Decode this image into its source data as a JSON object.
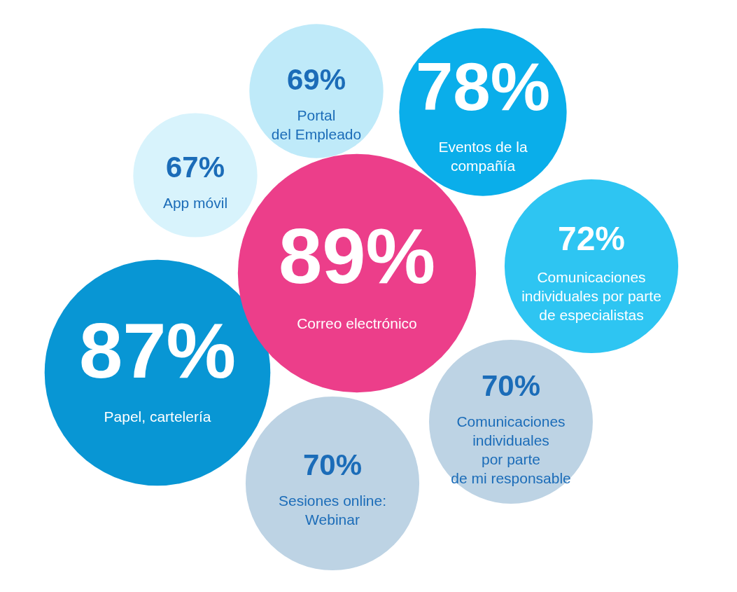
{
  "chart_data": {
    "type": "other",
    "categories": [
      "Portal del Empleado",
      "App móvil",
      "Eventos de la compañía",
      "Comunicaciones individuales por parte de especialistas",
      "Papel, cartelería",
      "Sesiones online: Webinar",
      "Comunicaciones individuales por parte de mi responsable",
      "Correo electrónico"
    ],
    "values": [
      69,
      67,
      78,
      72,
      87,
      70,
      70,
      89
    ],
    "value_labels": [
      "69%",
      "67%",
      "78%",
      "72%",
      "87%",
      "70%",
      "70%",
      "89%"
    ],
    "colors": [
      "#bfeaf9",
      "#d8f3fc",
      "#0aaeea",
      "#2ec5f2",
      "#0896d4",
      "#bdd3e4",
      "#bdd3e4",
      "#ec3e8a"
    ]
  }
}
